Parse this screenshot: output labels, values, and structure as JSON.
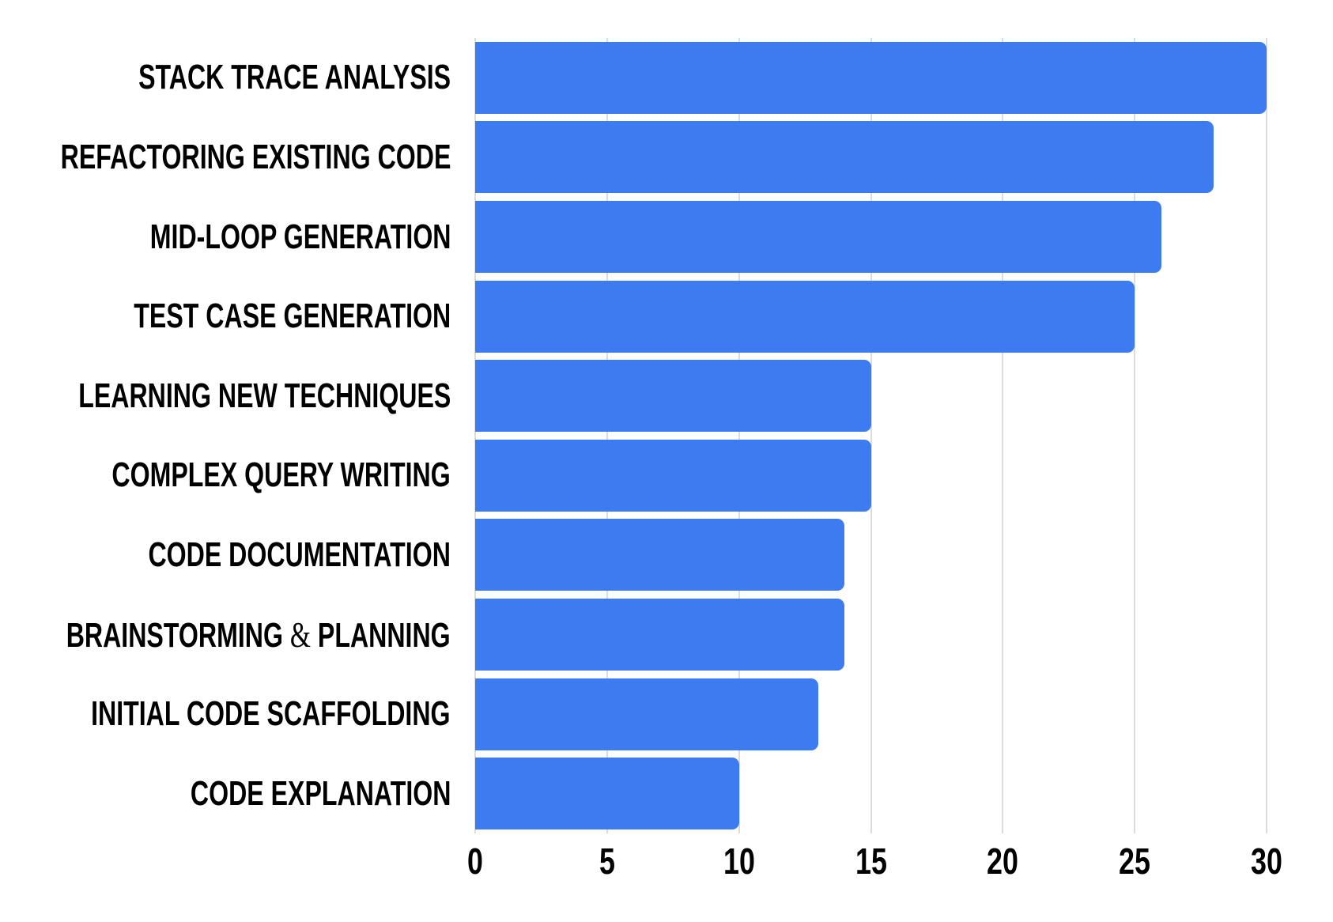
{
  "chart_data": {
    "type": "bar",
    "orientation": "horizontal",
    "title": "",
    "xlabel": "",
    "ylabel": "",
    "categories": [
      "STACK TRACE ANALYSIS",
      "REFACTORING EXISTING CODE",
      "MID-LOOP GENERATION",
      "TEST CASE GENERATION",
      "LEARNING NEW TECHNIQUES",
      "COMPLEX QUERY WRITING",
      "CODE DOCUMENTATION",
      "BRAINSTORMING & PLANNING",
      "INITIAL CODE SCAFFOLDING",
      "CODE EXPLANATION"
    ],
    "values": [
      30,
      28,
      26,
      25,
      15,
      15,
      14,
      14,
      13,
      10
    ],
    "xlim": [
      0,
      30
    ],
    "xticks": [
      0,
      5,
      10,
      15,
      20,
      25,
      30
    ],
    "grid": "vertical",
    "legend": "none",
    "bar_color": "#3C7BF0",
    "gridline_color": "#DCDCDC",
    "text_color": "#000000",
    "background_color": "#FFFFFF"
  }
}
